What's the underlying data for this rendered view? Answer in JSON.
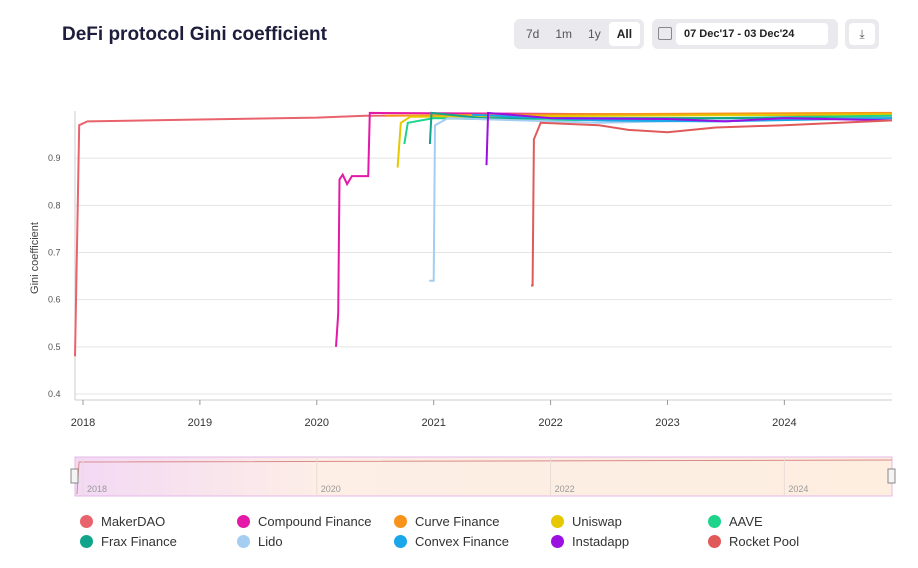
{
  "header": {
    "title": "DeFi protocol Gini coefficient",
    "ranges": [
      "7d",
      "1m",
      "1y",
      "All"
    ],
    "active_range": "All",
    "date_range": "07 Dec'17 - 03 Dec'24",
    "icons": {
      "calendar": "calendar-icon",
      "download": "download-icon"
    }
  },
  "chart_data": {
    "type": "line",
    "title": "DeFi protocol Gini coefficient",
    "xlabel": "",
    "ylabel": "Gini coefficient",
    "xlim": [
      "2017-12-07",
      "2024-12-03"
    ],
    "ylim": [
      0.4,
      1.0
    ],
    "yticks": [
      "0.4",
      "0.5",
      "0.6",
      "0.7",
      "0.8",
      "0.9"
    ],
    "xticks": [
      "2018",
      "2019",
      "2020",
      "2021",
      "2022",
      "2023",
      "2024"
    ],
    "navigator_ticks": [
      "2018",
      "2020",
      "2022",
      "2024"
    ],
    "grid": true,
    "legend_position": "bottom",
    "series": [
      {
        "name": "MakerDAO",
        "color": "#e8636b",
        "points": [
          [
            "2017-12-07",
            0.48
          ],
          [
            "2017-12-20",
            0.97
          ],
          [
            "2018-01-15",
            0.978
          ],
          [
            "2019-01-01",
            0.982
          ],
          [
            "2020-01-01",
            0.986
          ],
          [
            "2020-06-01",
            0.99
          ],
          [
            "2024-12-03",
            0.995
          ]
        ]
      },
      {
        "name": "Compound Finance",
        "color": "#e419a8",
        "points": [
          [
            "2020-03-01",
            0.5
          ],
          [
            "2020-03-08",
            0.57
          ],
          [
            "2020-03-12",
            0.855
          ],
          [
            "2020-03-22",
            0.865
          ],
          [
            "2020-04-05",
            0.845
          ],
          [
            "2020-04-20",
            0.862
          ],
          [
            "2020-06-10",
            0.862
          ],
          [
            "2020-06-15",
            0.996
          ],
          [
            "2024-12-03",
            0.99
          ]
        ]
      },
      {
        "name": "Curve Finance",
        "color": "#f7931a",
        "points": [
          [
            "2020-08-01",
            0.99
          ],
          [
            "2022-01-01",
            0.993
          ],
          [
            "2024-12-03",
            0.996
          ]
        ]
      },
      {
        "name": "Uniswap",
        "color": "#e6c800",
        "points": [
          [
            "2020-09-10",
            0.88
          ],
          [
            "2020-09-20",
            0.975
          ],
          [
            "2020-10-20",
            0.988
          ],
          [
            "2024-12-03",
            0.993
          ]
        ]
      },
      {
        "name": "AAVE",
        "color": "#1ed48a",
        "points": [
          [
            "2020-10-01",
            0.93
          ],
          [
            "2020-10-12",
            0.975
          ],
          [
            "2021-01-01",
            0.985
          ],
          [
            "2022-01-01",
            0.98
          ],
          [
            "2024-12-03",
            0.99
          ]
        ]
      },
      {
        "name": "Frax Finance",
        "color": "#10a58a",
        "points": [
          [
            "2020-12-20",
            0.93
          ],
          [
            "2020-12-25",
            0.996
          ],
          [
            "2021-06-01",
            0.985
          ],
          [
            "2024-12-03",
            0.985
          ]
        ]
      },
      {
        "name": "Lido",
        "color": "#a5cdf2",
        "points": [
          [
            "2020-12-18",
            0.64
          ],
          [
            "2021-01-01",
            0.64
          ],
          [
            "2021-01-05",
            0.97
          ],
          [
            "2021-02-15",
            0.985
          ],
          [
            "2022-06-01",
            0.975
          ],
          [
            "2023-06-01",
            0.98
          ],
          [
            "2024-12-03",
            0.985
          ]
        ]
      },
      {
        "name": "Convex Finance",
        "color": "#1aa7ea",
        "points": [
          [
            "2021-05-01",
            0.992
          ],
          [
            "2022-06-01",
            0.98
          ],
          [
            "2023-06-01",
            0.978
          ],
          [
            "2024-12-03",
            0.985
          ]
        ]
      },
      {
        "name": "Instadapp",
        "color": "#9b10e0",
        "points": [
          [
            "2021-06-15",
            0.885
          ],
          [
            "2021-06-20",
            0.996
          ],
          [
            "2022-01-01",
            0.985
          ],
          [
            "2023-01-01",
            0.983
          ],
          [
            "2023-07-01",
            0.978
          ],
          [
            "2024-01-01",
            0.985
          ],
          [
            "2024-12-03",
            0.98
          ]
        ]
      },
      {
        "name": "Rocket Pool",
        "color": "#e05a5a",
        "points": [
          [
            "2021-11-01",
            0.63
          ],
          [
            "2021-11-06",
            0.63
          ],
          [
            "2021-11-10",
            0.94
          ],
          [
            "2021-12-01",
            0.975
          ],
          [
            "2022-06-01",
            0.97
          ],
          [
            "2022-09-01",
            0.96
          ],
          [
            "2023-01-01",
            0.955
          ],
          [
            "2023-06-01",
            0.965
          ],
          [
            "2024-01-01",
            0.97
          ],
          [
            "2024-12-03",
            0.98
          ]
        ]
      }
    ]
  }
}
